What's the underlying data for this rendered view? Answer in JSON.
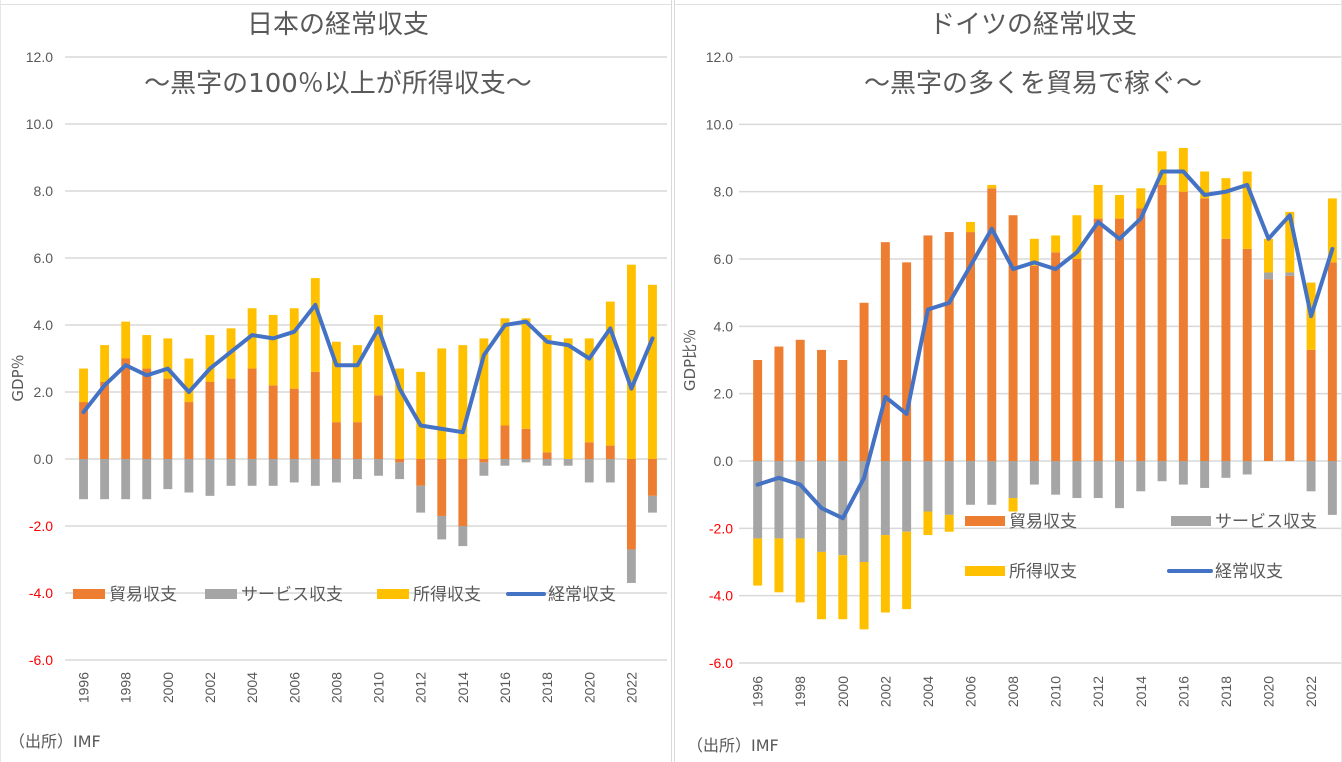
{
  "chart_data": [
    {
      "type": "bar",
      "stacked": true,
      "title": "日本の経常収支",
      "subtitle": "～黒字の100％以上が所得収支～",
      "xlabel": "",
      "ylabel": "GDP％",
      "ylim": [
        -6.0,
        12.0
      ],
      "ytick_step": 2.0,
      "yticks": [
        "12.0",
        "10.0",
        "8.0",
        "6.0",
        "4.0",
        "2.0",
        "0.0",
        "-2.0",
        "-4.0",
        "-6.0"
      ],
      "negative_tick_color": "#ff0000",
      "grid": true,
      "legend_position": "lower-inside-one-row",
      "categories": [
        1996,
        1997,
        1998,
        1999,
        2000,
        2001,
        2002,
        2003,
        2004,
        2005,
        2006,
        2007,
        2008,
        2009,
        2010,
        2011,
        2012,
        2013,
        2014,
        2015,
        2016,
        2017,
        2018,
        2019,
        2020,
        2021,
        2022,
        2023
      ],
      "xtick_labels": [
        "1996",
        "1998",
        "2000",
        "2002",
        "2004",
        "2006",
        "2008",
        "2010",
        "2012",
        "2014",
        "2016",
        "2018",
        "2020",
        "2022"
      ],
      "series": [
        {
          "name": "貿易収支",
          "kind": "bar",
          "color": "#ed7d31",
          "values": [
            1.7,
            2.3,
            3.0,
            2.7,
            2.4,
            1.7,
            2.3,
            2.4,
            2.7,
            2.2,
            2.1,
            2.6,
            1.1,
            1.1,
            1.9,
            -0.1,
            -0.8,
            -1.7,
            -2.0,
            -0.1,
            1.0,
            0.9,
            0.2,
            0.0,
            0.5,
            0.4,
            -2.7,
            -1.1
          ]
        },
        {
          "name": "サービス収支",
          "kind": "bar",
          "color": "#a5a5a5",
          "values": [
            -1.2,
            -1.2,
            -1.2,
            -1.2,
            -0.9,
            -1.0,
            -1.1,
            -0.8,
            -0.8,
            -0.8,
            -0.7,
            -0.8,
            -0.7,
            -0.6,
            -0.5,
            -0.5,
            -0.8,
            -0.7,
            -0.6,
            -0.4,
            -0.2,
            -0.1,
            -0.2,
            -0.2,
            -0.7,
            -0.7,
            -1.0,
            -0.5
          ]
        },
        {
          "name": "所得収支",
          "kind": "bar",
          "color": "#ffc000",
          "values": [
            1.0,
            1.1,
            1.1,
            1.0,
            1.2,
            1.3,
            1.4,
            1.5,
            1.8,
            2.1,
            2.4,
            2.8,
            2.4,
            2.3,
            2.4,
            2.7,
            2.6,
            3.3,
            3.4,
            3.6,
            3.2,
            3.3,
            3.5,
            3.6,
            3.1,
            4.3,
            5.8,
            5.2
          ]
        },
        {
          "name": "経常収支",
          "kind": "line",
          "color": "#4472c4",
          "values": [
            1.4,
            2.2,
            2.8,
            2.5,
            2.7,
            2.0,
            2.7,
            3.2,
            3.7,
            3.6,
            3.8,
            4.6,
            2.8,
            2.8,
            3.9,
            2.1,
            1.0,
            0.9,
            0.8,
            3.1,
            4.0,
            4.1,
            3.5,
            3.4,
            3.0,
            3.9,
            2.1,
            3.6
          ]
        }
      ]
    },
    {
      "type": "bar",
      "stacked": true,
      "title": "ドイツの経常収支",
      "subtitle": "～黒字の多くを貿易で稼ぐ～",
      "xlabel": "",
      "ylabel": "GDP比％",
      "ylim": [
        -6.0,
        12.0
      ],
      "ytick_step": 2.0,
      "yticks": [
        "12.0",
        "10.0",
        "8.0",
        "6.0",
        "4.0",
        "2.0",
        "0.0",
        "-2.0",
        "-4.0",
        "-6.0"
      ],
      "negative_tick_color": "#ff0000",
      "grid": true,
      "legend_position": "lower-right-two-rows",
      "categories": [
        1996,
        1997,
        1998,
        1999,
        2000,
        2001,
        2002,
        2003,
        2004,
        2005,
        2006,
        2007,
        2008,
        2009,
        2010,
        2011,
        2012,
        2013,
        2014,
        2015,
        2016,
        2017,
        2018,
        2019,
        2020,
        2021,
        2022,
        2023
      ],
      "xtick_labels": [
        "1996",
        "1998",
        "2000",
        "2002",
        "2004",
        "2006",
        "2008",
        "2010",
        "2012",
        "2014",
        "2016",
        "2018",
        "2020",
        "2022"
      ],
      "series": [
        {
          "name": "貿易収支",
          "kind": "bar",
          "color": "#ed7d31",
          "values": [
            3.0,
            3.4,
            3.6,
            3.3,
            3.0,
            4.7,
            6.5,
            5.9,
            6.7,
            6.8,
            6.8,
            8.1,
            7.3,
            5.8,
            6.2,
            6.0,
            7.2,
            7.2,
            7.5,
            8.2,
            8.0,
            7.8,
            6.6,
            6.3,
            5.4,
            5.5,
            3.3,
            5.9
          ]
        },
        {
          "name": "サービス収支",
          "kind": "bar",
          "color": "#a5a5a5",
          "values": [
            -2.3,
            -2.3,
            -2.3,
            -2.7,
            -2.8,
            -3.0,
            -2.2,
            -2.1,
            -1.5,
            -1.6,
            -1.3,
            -1.3,
            -1.1,
            -0.7,
            -1.0,
            -1.1,
            -1.1,
            -1.4,
            -0.9,
            -0.6,
            -0.7,
            -0.8,
            -0.5,
            -0.4,
            0.2,
            0.1,
            -0.9,
            -1.6
          ]
        },
        {
          "name": "所得収支",
          "kind": "bar",
          "color": "#ffc000",
          "values": [
            -1.4,
            -1.6,
            -1.9,
            -2.0,
            -1.9,
            -2.0,
            -2.3,
            -2.3,
            -0.7,
            -0.5,
            0.3,
            0.1,
            -0.4,
            0.8,
            0.5,
            1.3,
            1.0,
            0.7,
            0.6,
            1.0,
            1.3,
            0.8,
            1.8,
            2.3,
            1.0,
            1.8,
            2.0,
            1.9
          ]
        },
        {
          "name": "経常収支",
          "kind": "line",
          "color": "#4472c4",
          "values": [
            -0.7,
            -0.5,
            -0.7,
            -1.4,
            -1.7,
            -0.5,
            1.9,
            1.4,
            4.5,
            4.7,
            5.8,
            6.9,
            5.7,
            5.9,
            5.7,
            6.2,
            7.1,
            6.6,
            7.2,
            8.6,
            8.6,
            7.9,
            8.0,
            8.2,
            6.6,
            7.3,
            4.3,
            6.3
          ]
        }
      ]
    }
  ],
  "sources": [
    "（出所）IMF",
    "（出所）IMF"
  ]
}
